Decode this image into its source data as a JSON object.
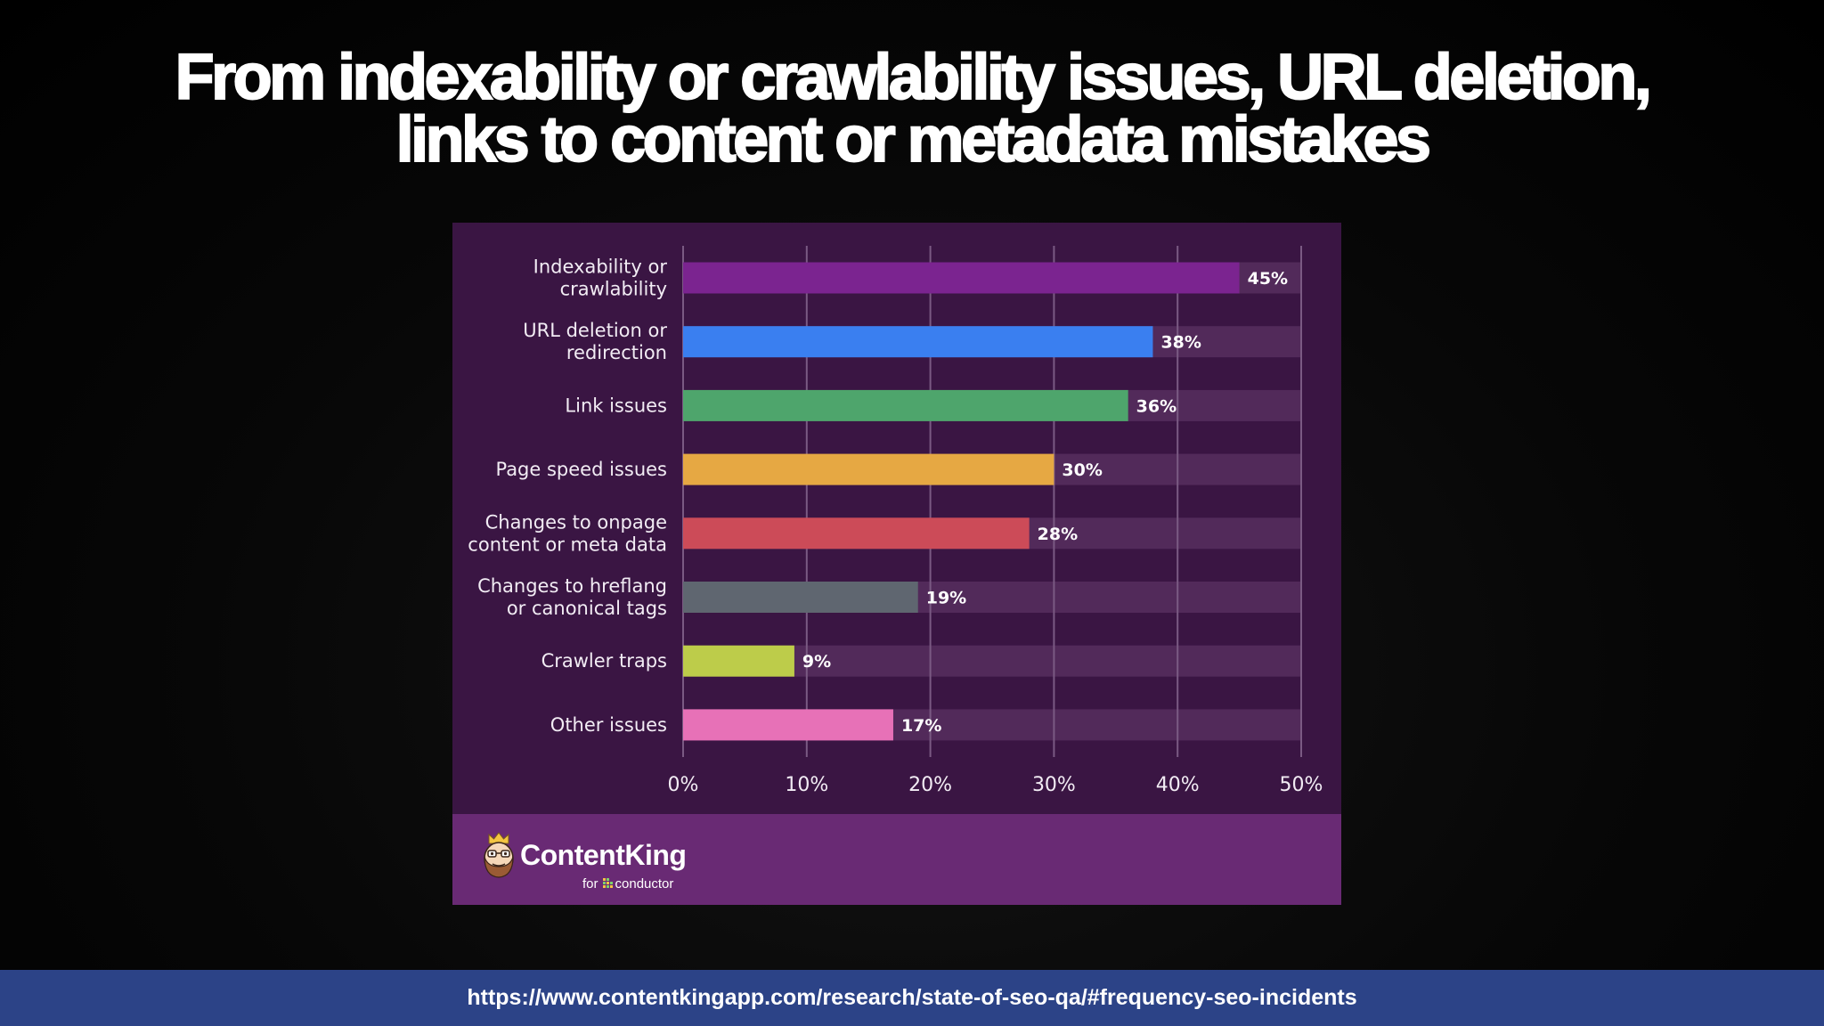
{
  "slide": {
    "title_lines": [
      "From indexability or crawlability issues, URL deletion,",
      "links to content or metadata mistakes"
    ],
    "source_url": "https://www.contentkingapp.com/research/state-of-seo-qa/#frequency-seo-incidents"
  },
  "brand": {
    "name": "ContentKing",
    "for_label": "for",
    "partner": "conductor"
  },
  "colors": {
    "card_background": "#3a1543",
    "track": "#522a5a",
    "gridline": "#7a5a83",
    "brand_strip": "#692a74",
    "url_bar": "#2c4387"
  },
  "chart_data": {
    "type": "bar",
    "orientation": "horizontal",
    "title": "",
    "xlabel": "",
    "ylabel": "",
    "xlim": [
      0,
      50
    ],
    "x_ticks": [
      "0%",
      "10%",
      "20%",
      "30%",
      "40%",
      "50%"
    ],
    "grid": true,
    "categories": [
      [
        "Indexability or",
        "crawlability"
      ],
      [
        "URL deletion or",
        "redirection"
      ],
      [
        "Link issues"
      ],
      [
        "Page speed issues"
      ],
      [
        "Changes to onpage",
        "content or meta data"
      ],
      [
        "Changes to hreflang",
        "or canonical tags"
      ],
      [
        "Crawler traps"
      ],
      [
        "Other issues"
      ]
    ],
    "values": [
      45,
      38,
      36,
      30,
      28,
      19,
      9,
      17
    ],
    "value_labels": [
      "45%",
      "38%",
      "36%",
      "30%",
      "28%",
      "19%",
      "9%",
      "17%"
    ],
    "bar_colors": [
      "#7b2490",
      "#3a7ff0",
      "#4ea56c",
      "#e6a843",
      "#cc4b58",
      "#5f6670",
      "#bdcc4a",
      "#e771b7"
    ]
  }
}
